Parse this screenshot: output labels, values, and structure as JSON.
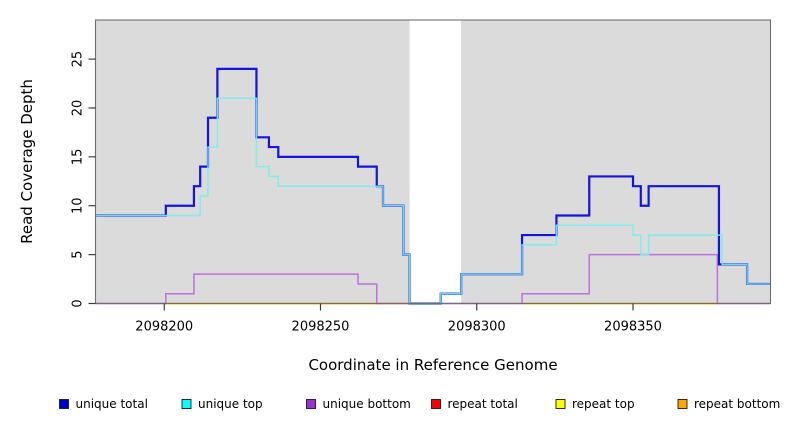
{
  "chart_data": {
    "type": "line",
    "subtype": "step-coverage-plot",
    "title": "",
    "xlabel": "Coordinate in Reference Genome",
    "ylabel": "Read Coverage Depth",
    "xlim": [
      2098178,
      2098394
    ],
    "ylim": [
      0,
      29
    ],
    "x_ticks": [
      2098200,
      2098250,
      2098300,
      2098350
    ],
    "y_ticks": [
      0,
      5,
      10,
      15,
      20,
      25
    ],
    "grid": false,
    "panel_bg": "#DBDBDB",
    "box_color": "#6E6E6E",
    "tick_color": "#3d3d3d",
    "masked_region": {
      "x_start": 2098278.5,
      "x_end": 2098295,
      "fill": "#ffffff"
    },
    "legend_position": "bottom",
    "series": [
      {
        "name": "repeat total",
        "legend_color": "#FF0000",
        "line_color": "#E0607E",
        "line_width": 1.3,
        "points": [
          [
            2098178,
            0
          ],
          [
            2098394,
            0
          ]
        ]
      },
      {
        "name": "repeat top",
        "legend_color": "#FFFF00",
        "line_color": "#FFFF00",
        "line_width": 1.4,
        "zero_segments": [
          [
            2098200,
            2098278.5
          ],
          [
            2098314.5,
            2098377.5
          ]
        ]
      },
      {
        "name": "repeat bottom",
        "legend_color": "#FFA500",
        "line_color": "#FFA500",
        "line_width": 1.8,
        "zero_segments": [
          [
            2098200,
            2098278.5
          ],
          [
            2098314.5,
            2098377.5
          ]
        ]
      },
      {
        "name": "unique bottom",
        "legend_color": "#9932CC",
        "line_color": "#BD72DC",
        "line_width": 1.5,
        "points": [
          [
            2098178,
            0
          ],
          [
            2098200.5,
            1
          ],
          [
            2098209.5,
            3
          ],
          [
            2098262,
            2
          ],
          [
            2098268,
            0
          ],
          [
            2098314.5,
            1
          ],
          [
            2098336,
            5
          ],
          [
            2098377,
            0
          ],
          [
            2098394,
            0
          ]
        ]
      },
      {
        "name": "unique total",
        "legend_color": "#0000CD",
        "line_color": "#1414DF",
        "line_width": 2.2,
        "points": [
          [
            2098178,
            9
          ],
          [
            2098200.5,
            10
          ],
          [
            2098209.5,
            12
          ],
          [
            2098211.5,
            14
          ],
          [
            2098214,
            19
          ],
          [
            2098217,
            24
          ],
          [
            2098229.5,
            17
          ],
          [
            2098233.5,
            16
          ],
          [
            2098236.5,
            15
          ],
          [
            2098262,
            14
          ],
          [
            2098268,
            12
          ],
          [
            2098270,
            10
          ],
          [
            2098276.5,
            5
          ],
          [
            2098278.5,
            0
          ],
          [
            2098288.5,
            1
          ],
          [
            2098295,
            3
          ],
          [
            2098314.5,
            7
          ],
          [
            2098325.5,
            9
          ],
          [
            2098336,
            13
          ],
          [
            2098350,
            12
          ],
          [
            2098352.5,
            10
          ],
          [
            2098355,
            12
          ],
          [
            2098377.5,
            4
          ],
          [
            2098386.5,
            2
          ],
          [
            2098394,
            2
          ]
        ]
      },
      {
        "name": "unique top",
        "legend_color": "#00FFFF",
        "line_color": "#79EDED",
        "line_width": 1.5,
        "opacity": 0.9,
        "points": [
          [
            2098178,
            9
          ],
          [
            2098211.5,
            11
          ],
          [
            2098214,
            16
          ],
          [
            2098217,
            21
          ],
          [
            2098229.5,
            14
          ],
          [
            2098233.5,
            13
          ],
          [
            2098236.5,
            12
          ],
          [
            2098270,
            10
          ],
          [
            2098276.5,
            5
          ],
          [
            2098278.5,
            0
          ],
          [
            2098288.5,
            1
          ],
          [
            2098295,
            3
          ],
          [
            2098314.5,
            6
          ],
          [
            2098325.5,
            8
          ],
          [
            2098350,
            7
          ],
          [
            2098352.5,
            5
          ],
          [
            2098355,
            7
          ],
          [
            2098378.5,
            4
          ],
          [
            2098386.5,
            2
          ],
          [
            2098394,
            2
          ]
        ]
      }
    ],
    "legend_order": [
      "unique total",
      "unique top",
      "unique bottom",
      "repeat total",
      "repeat top",
      "repeat bottom"
    ]
  }
}
